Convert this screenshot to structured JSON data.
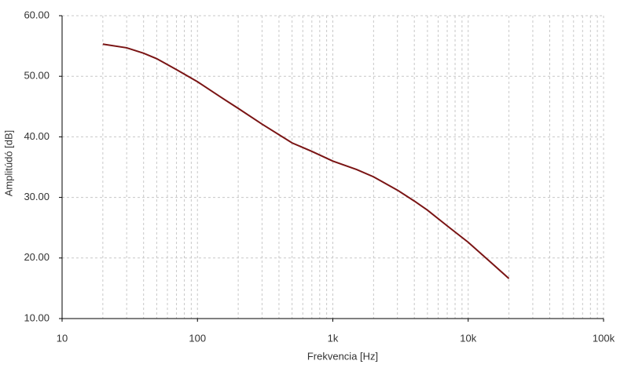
{
  "chart_data": {
    "type": "line",
    "x_label": "Frekvencia [Hz]",
    "y_label": "Amplitúdó [dB]",
    "x": [
      20,
      30,
      40,
      50,
      70,
      100,
      150,
      200,
      300,
      500,
      700,
      1000,
      1500,
      2000,
      3000,
      4000,
      5000,
      7000,
      10000,
      15000,
      20000
    ],
    "series": [
      {
        "color": "#7a1414",
        "values": [
          55.3,
          54.7,
          53.8,
          52.9,
          51.1,
          49.1,
          46.5,
          44.7,
          42.1,
          39.0,
          37.6,
          36.0,
          34.6,
          33.4,
          31.2,
          29.4,
          27.9,
          25.3,
          22.6,
          19.1,
          16.6
        ]
      }
    ],
    "x_log": true,
    "xlim": [
      10,
      100000
    ],
    "xticks": [
      10,
      100,
      {
        "value": 1000,
        "label": "1k"
      },
      {
        "value": 10000,
        "label": "10k"
      },
      {
        "value": 100000,
        "label": "100k"
      }
    ],
    "ylim": [
      10,
      60
    ],
    "yticks": [
      {
        "value": 10,
        "label": "10.00"
      },
      {
        "value": 20,
        "label": "20.00"
      },
      {
        "value": 30,
        "label": "30.00"
      },
      {
        "value": 40,
        "label": "40.00"
      },
      {
        "value": 50,
        "label": "50.00"
      },
      {
        "value": 60,
        "label": "60.00"
      }
    ],
    "grid": true,
    "minor_grid": true
  }
}
